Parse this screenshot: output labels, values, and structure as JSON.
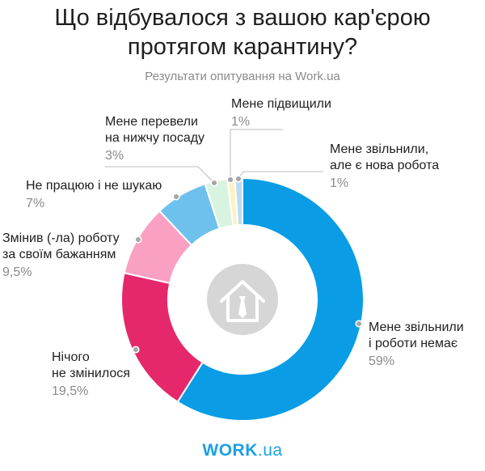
{
  "chart_data": {
    "type": "pie",
    "style": "donut",
    "title_lines": [
      "Що відбувалося з вашою кар'єрою",
      "протягом карантину?"
    ],
    "subtitle": "Результати опитування на Work.ua",
    "slices": [
      {
        "name_lines": [
          "Мене звільнили",
          "і роботи немає"
        ],
        "value_label": "59%",
        "value": 59,
        "color": "#0a9de6"
      },
      {
        "name_lines": [
          "Нічого",
          "не змінилося"
        ],
        "value_label": "19,5%",
        "value": 19.5,
        "color": "#e5286b"
      },
      {
        "name_lines": [
          "Змінив (-ла) роботу",
          "за своїм бажанням"
        ],
        "value_label": "9,5%",
        "value": 9.5,
        "color": "#f9a0c3"
      },
      {
        "name_lines": [
          "Не працюю і не шукаю"
        ],
        "value_label": "7%",
        "value": 7,
        "color": "#6ec1ec"
      },
      {
        "name_lines": [
          "Мене перевели",
          "на нижчу посаду"
        ],
        "value_label": "3%",
        "value": 3,
        "color": "#d9f3e1"
      },
      {
        "name_lines": [
          "Мене підвищили"
        ],
        "value_label": "1%",
        "value": 1,
        "color": "#fbf2c6"
      },
      {
        "name_lines": [
          "Мене звільнили,",
          "але є нова робота"
        ],
        "value_label": "1%",
        "value": 1,
        "color": "#b9dcf3"
      }
    ],
    "center_icon": "house-tie-icon",
    "legend": "none"
  },
  "logo": {
    "main": "WORK",
    "suffix": ".ua"
  }
}
